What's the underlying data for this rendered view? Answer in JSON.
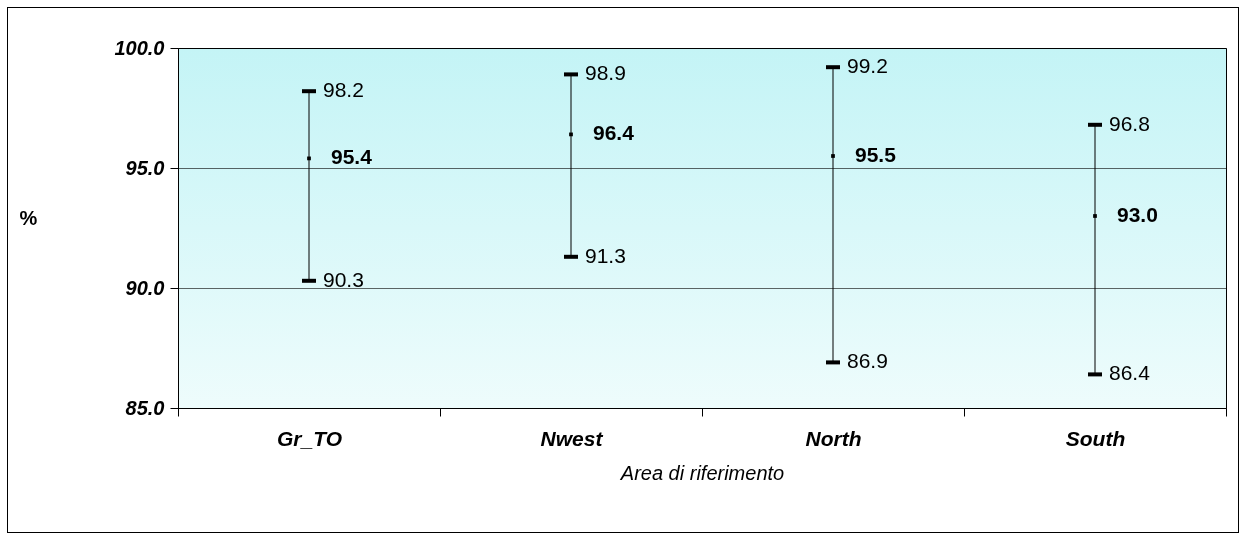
{
  "chart_data": {
    "type": "scatter",
    "xlabel": "Area di riferimento",
    "ylabel": "%",
    "categories": [
      "Gr_TO",
      "Nwest",
      "North",
      "South"
    ],
    "series": [
      {
        "color": "#000000",
        "values": [
          95.4,
          96.4,
          95.5,
          93.0
        ],
        "errors": [
          [
            90.3,
            98.2
          ],
          [
            91.3,
            98.9
          ],
          [
            86.9,
            99.2
          ],
          [
            86.4,
            96.8
          ]
        ]
      }
    ],
    "value_labels": [
      "95.4",
      "96.4",
      "95.5",
      "93.0"
    ],
    "marker": "square",
    "grid": "y",
    "ylim": [
      85,
      100
    ],
    "yticks": [
      {
        "value": 85,
        "label": "85.0"
      },
      {
        "value": 90,
        "label": "90.0"
      },
      {
        "value": 95,
        "label": "95.0"
      },
      {
        "value": 100,
        "label": "100.0"
      }
    ],
    "annotations": [
      {
        "text": "90.3",
        "x": "Gr_TO",
        "y": 90.3
      },
      {
        "text": "98.2",
        "x": "Gr_TO",
        "y": 98.2
      },
      {
        "text": "91.3",
        "x": "Nwest",
        "y": 91.3
      },
      {
        "text": "98.9",
        "x": "Nwest",
        "y": 98.9
      },
      {
        "text": "86.9",
        "x": "North",
        "y": 86.9
      },
      {
        "text": "99.2",
        "x": "North",
        "y": 99.2
      },
      {
        "text": "86.4",
        "x": "South",
        "y": 86.4
      },
      {
        "text": "96.8",
        "x": "South",
        "y": 96.8
      }
    ]
  }
}
